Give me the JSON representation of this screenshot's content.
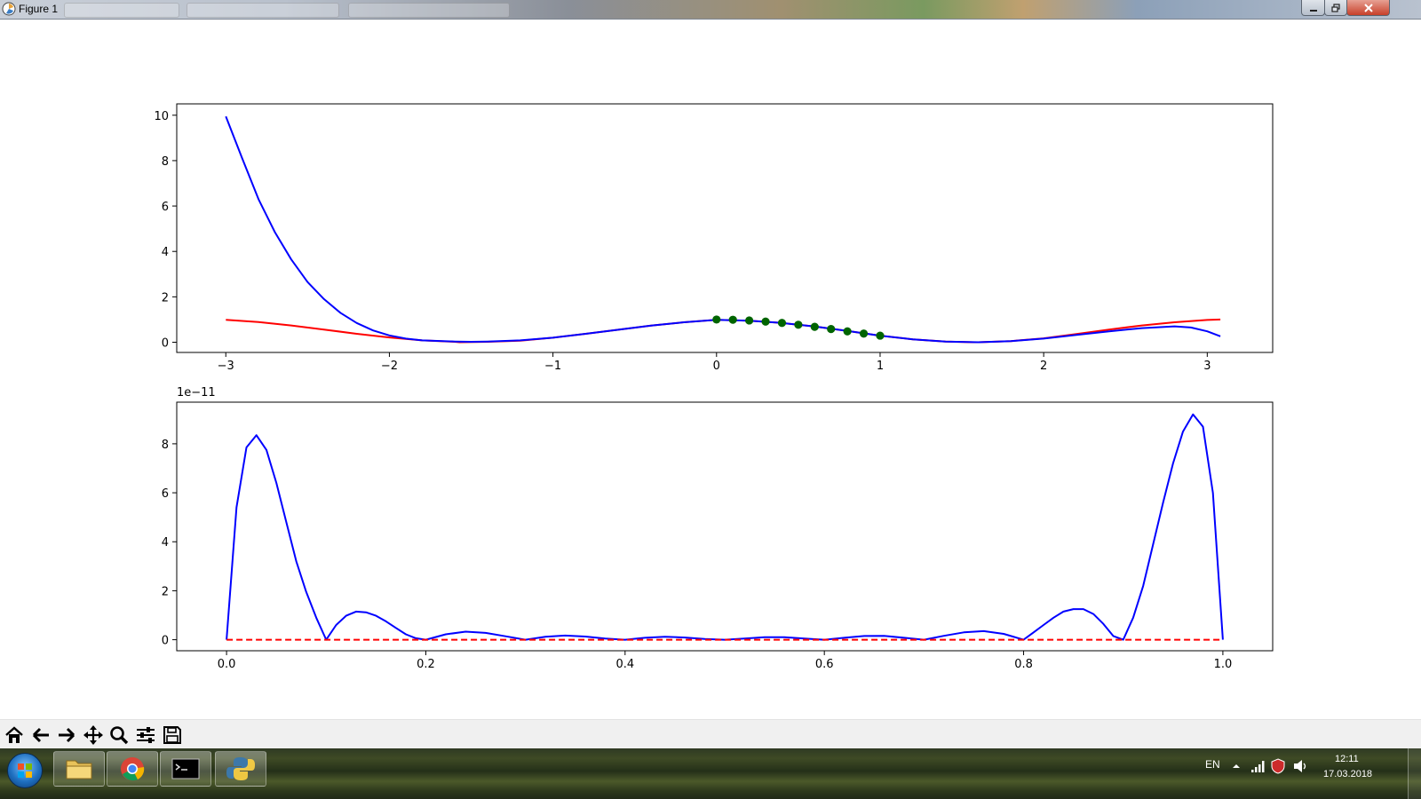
{
  "window": {
    "title": "Figure 1",
    "buttons": {
      "minimize_icon": "minimize-icon",
      "maximize_icon": "restore-icon",
      "close_icon": "close-icon"
    }
  },
  "chart_data": [
    {
      "type": "line",
      "title": "",
      "xlabel": "",
      "ylabel": "",
      "xlim": [
        -3.3,
        3.4
      ],
      "ylim": [
        -0.45,
        10.5
      ],
      "xticks": [
        -3,
        -2,
        -1,
        0,
        1,
        2,
        3
      ],
      "xtick_labels": [
        "−3",
        "−2",
        "−1",
        "0",
        "1",
        "2",
        "3"
      ],
      "yticks": [
        0,
        2,
        4,
        6,
        8,
        10
      ],
      "ytick_labels": [
        "0",
        "2",
        "4",
        "6",
        "8",
        "10"
      ],
      "grid": false,
      "legend": "none",
      "series": [
        {
          "color": "#ff0000",
          "x": [
            -3.0,
            -2.8,
            -2.6,
            -2.4,
            -2.2,
            -2.0,
            -1.8,
            -1.6,
            -1.5708,
            -1.4,
            -1.2,
            -1.0,
            -0.8,
            -0.6,
            -0.4,
            -0.2,
            0.0,
            0.2,
            0.4,
            0.6,
            0.8,
            1.0,
            1.2,
            1.4,
            1.5708,
            1.6,
            1.8,
            2.0,
            2.2,
            2.4,
            2.6,
            2.8,
            3.0,
            3.08
          ],
          "y": [
            0.99,
            0.89,
            0.74,
            0.56,
            0.37,
            0.21,
            0.08,
            0.02,
            0.0,
            0.02,
            0.07,
            0.2,
            0.37,
            0.55,
            0.73,
            0.88,
            0.99,
            0.95,
            0.85,
            0.69,
            0.5,
            0.29,
            0.13,
            0.03,
            0.0,
            0.0,
            0.05,
            0.17,
            0.36,
            0.56,
            0.74,
            0.88,
            0.98,
            1.0
          ]
        },
        {
          "color": "#0000ff",
          "x": [
            -3.0,
            -2.9,
            -2.8,
            -2.7,
            -2.6,
            -2.5,
            -2.4,
            -2.3,
            -2.2,
            -2.1,
            -2.0,
            -1.9,
            -1.8,
            -1.6,
            -1.5,
            -1.4,
            -1.2,
            -1.0,
            -0.8,
            -0.6,
            -0.4,
            -0.2,
            0.0,
            0.2,
            0.4,
            0.6,
            0.8,
            1.0,
            1.2,
            1.4,
            1.6,
            1.8,
            2.0,
            2.2,
            2.4,
            2.6,
            2.8,
            2.9,
            3.0,
            3.08
          ],
          "y": [
            9.95,
            8.1,
            6.3,
            4.85,
            3.65,
            2.65,
            1.9,
            1.3,
            0.85,
            0.52,
            0.3,
            0.16,
            0.08,
            0.03,
            0.02,
            0.03,
            0.08,
            0.2,
            0.37,
            0.55,
            0.73,
            0.88,
            0.99,
            0.95,
            0.85,
            0.69,
            0.5,
            0.29,
            0.13,
            0.03,
            0.0,
            0.05,
            0.16,
            0.32,
            0.48,
            0.62,
            0.7,
            0.65,
            0.48,
            0.26
          ]
        },
        {
          "type": "scatter",
          "color": "#006400",
          "x": [
            0.0,
            0.1,
            0.2,
            0.3,
            0.4,
            0.5,
            0.6,
            0.7,
            0.8,
            0.9,
            1.0
          ],
          "y": [
            1.0,
            0.99,
            0.96,
            0.91,
            0.85,
            0.77,
            0.68,
            0.58,
            0.48,
            0.38,
            0.29
          ]
        }
      ]
    },
    {
      "type": "line",
      "title": "",
      "xlabel": "",
      "ylabel": "",
      "offset_label": "1e−11",
      "xlim": [
        -0.05,
        1.05
      ],
      "ylim": [
        -0.45,
        9.7
      ],
      "xticks": [
        0.0,
        0.2,
        0.4,
        0.6,
        0.8,
        1.0
      ],
      "xtick_labels": [
        "0.0",
        "0.2",
        "0.4",
        "0.6",
        "0.8",
        "1.0"
      ],
      "yticks": [
        0,
        2,
        4,
        6,
        8
      ],
      "ytick_labels": [
        "0",
        "2",
        "4",
        "6",
        "8"
      ],
      "grid": false,
      "legend": "none",
      "series": [
        {
          "color": "#0000ff",
          "x": [
            0.0,
            0.01,
            0.02,
            0.03,
            0.04,
            0.05,
            0.06,
            0.07,
            0.08,
            0.09,
            0.1,
            0.11,
            0.12,
            0.13,
            0.14,
            0.15,
            0.16,
            0.17,
            0.18,
            0.19,
            0.2,
            0.22,
            0.24,
            0.26,
            0.28,
            0.3,
            0.32,
            0.34,
            0.36,
            0.38,
            0.4,
            0.42,
            0.44,
            0.46,
            0.48,
            0.5,
            0.52,
            0.54,
            0.56,
            0.58,
            0.6,
            0.62,
            0.64,
            0.66,
            0.68,
            0.7,
            0.72,
            0.74,
            0.76,
            0.78,
            0.8,
            0.81,
            0.82,
            0.83,
            0.84,
            0.85,
            0.86,
            0.87,
            0.88,
            0.89,
            0.9,
            0.91,
            0.92,
            0.93,
            0.94,
            0.95,
            0.96,
            0.97,
            0.98,
            0.99,
            1.0
          ],
          "y": [
            0.0,
            5.4,
            7.85,
            8.35,
            7.75,
            6.4,
            4.8,
            3.2,
            1.95,
            0.9,
            0.0,
            0.6,
            0.98,
            1.15,
            1.12,
            0.98,
            0.75,
            0.48,
            0.22,
            0.06,
            0.0,
            0.22,
            0.33,
            0.28,
            0.14,
            0.0,
            0.12,
            0.17,
            0.13,
            0.05,
            0.0,
            0.08,
            0.12,
            0.09,
            0.03,
            0.0,
            0.05,
            0.1,
            0.1,
            0.05,
            0.0,
            0.08,
            0.15,
            0.16,
            0.08,
            0.0,
            0.16,
            0.3,
            0.35,
            0.24,
            0.0,
            0.3,
            0.6,
            0.9,
            1.15,
            1.25,
            1.25,
            1.05,
            0.65,
            0.15,
            0.0,
            0.9,
            2.2,
            3.9,
            5.6,
            7.2,
            8.5,
            9.2,
            8.7,
            6.0,
            0.0
          ]
        },
        {
          "color": "#ff0000",
          "style": "dashed",
          "x": [
            0.0,
            1.0
          ],
          "y": [
            0.0,
            0.0
          ]
        }
      ]
    }
  ],
  "toolbar": {
    "items": [
      {
        "icon": "home-icon"
      },
      {
        "icon": "back-arrow-icon"
      },
      {
        "icon": "forward-arrow-icon"
      },
      {
        "icon": "pan-icon"
      },
      {
        "icon": "zoom-icon"
      },
      {
        "icon": "configure-subplots-icon"
      },
      {
        "icon": "save-icon"
      }
    ]
  },
  "taskbar": {
    "apps": [
      {
        "icon": "file-explorer-icon"
      },
      {
        "icon": "chrome-icon"
      },
      {
        "icon": "command-prompt-icon"
      },
      {
        "icon": "python-icon"
      }
    ],
    "tray": {
      "language": "EN",
      "time": "12:11",
      "date": "17.03.2018",
      "icons": [
        "show-hidden-icons-icon",
        "network-signal-icon",
        "security-icon",
        "volume-icon"
      ]
    }
  }
}
